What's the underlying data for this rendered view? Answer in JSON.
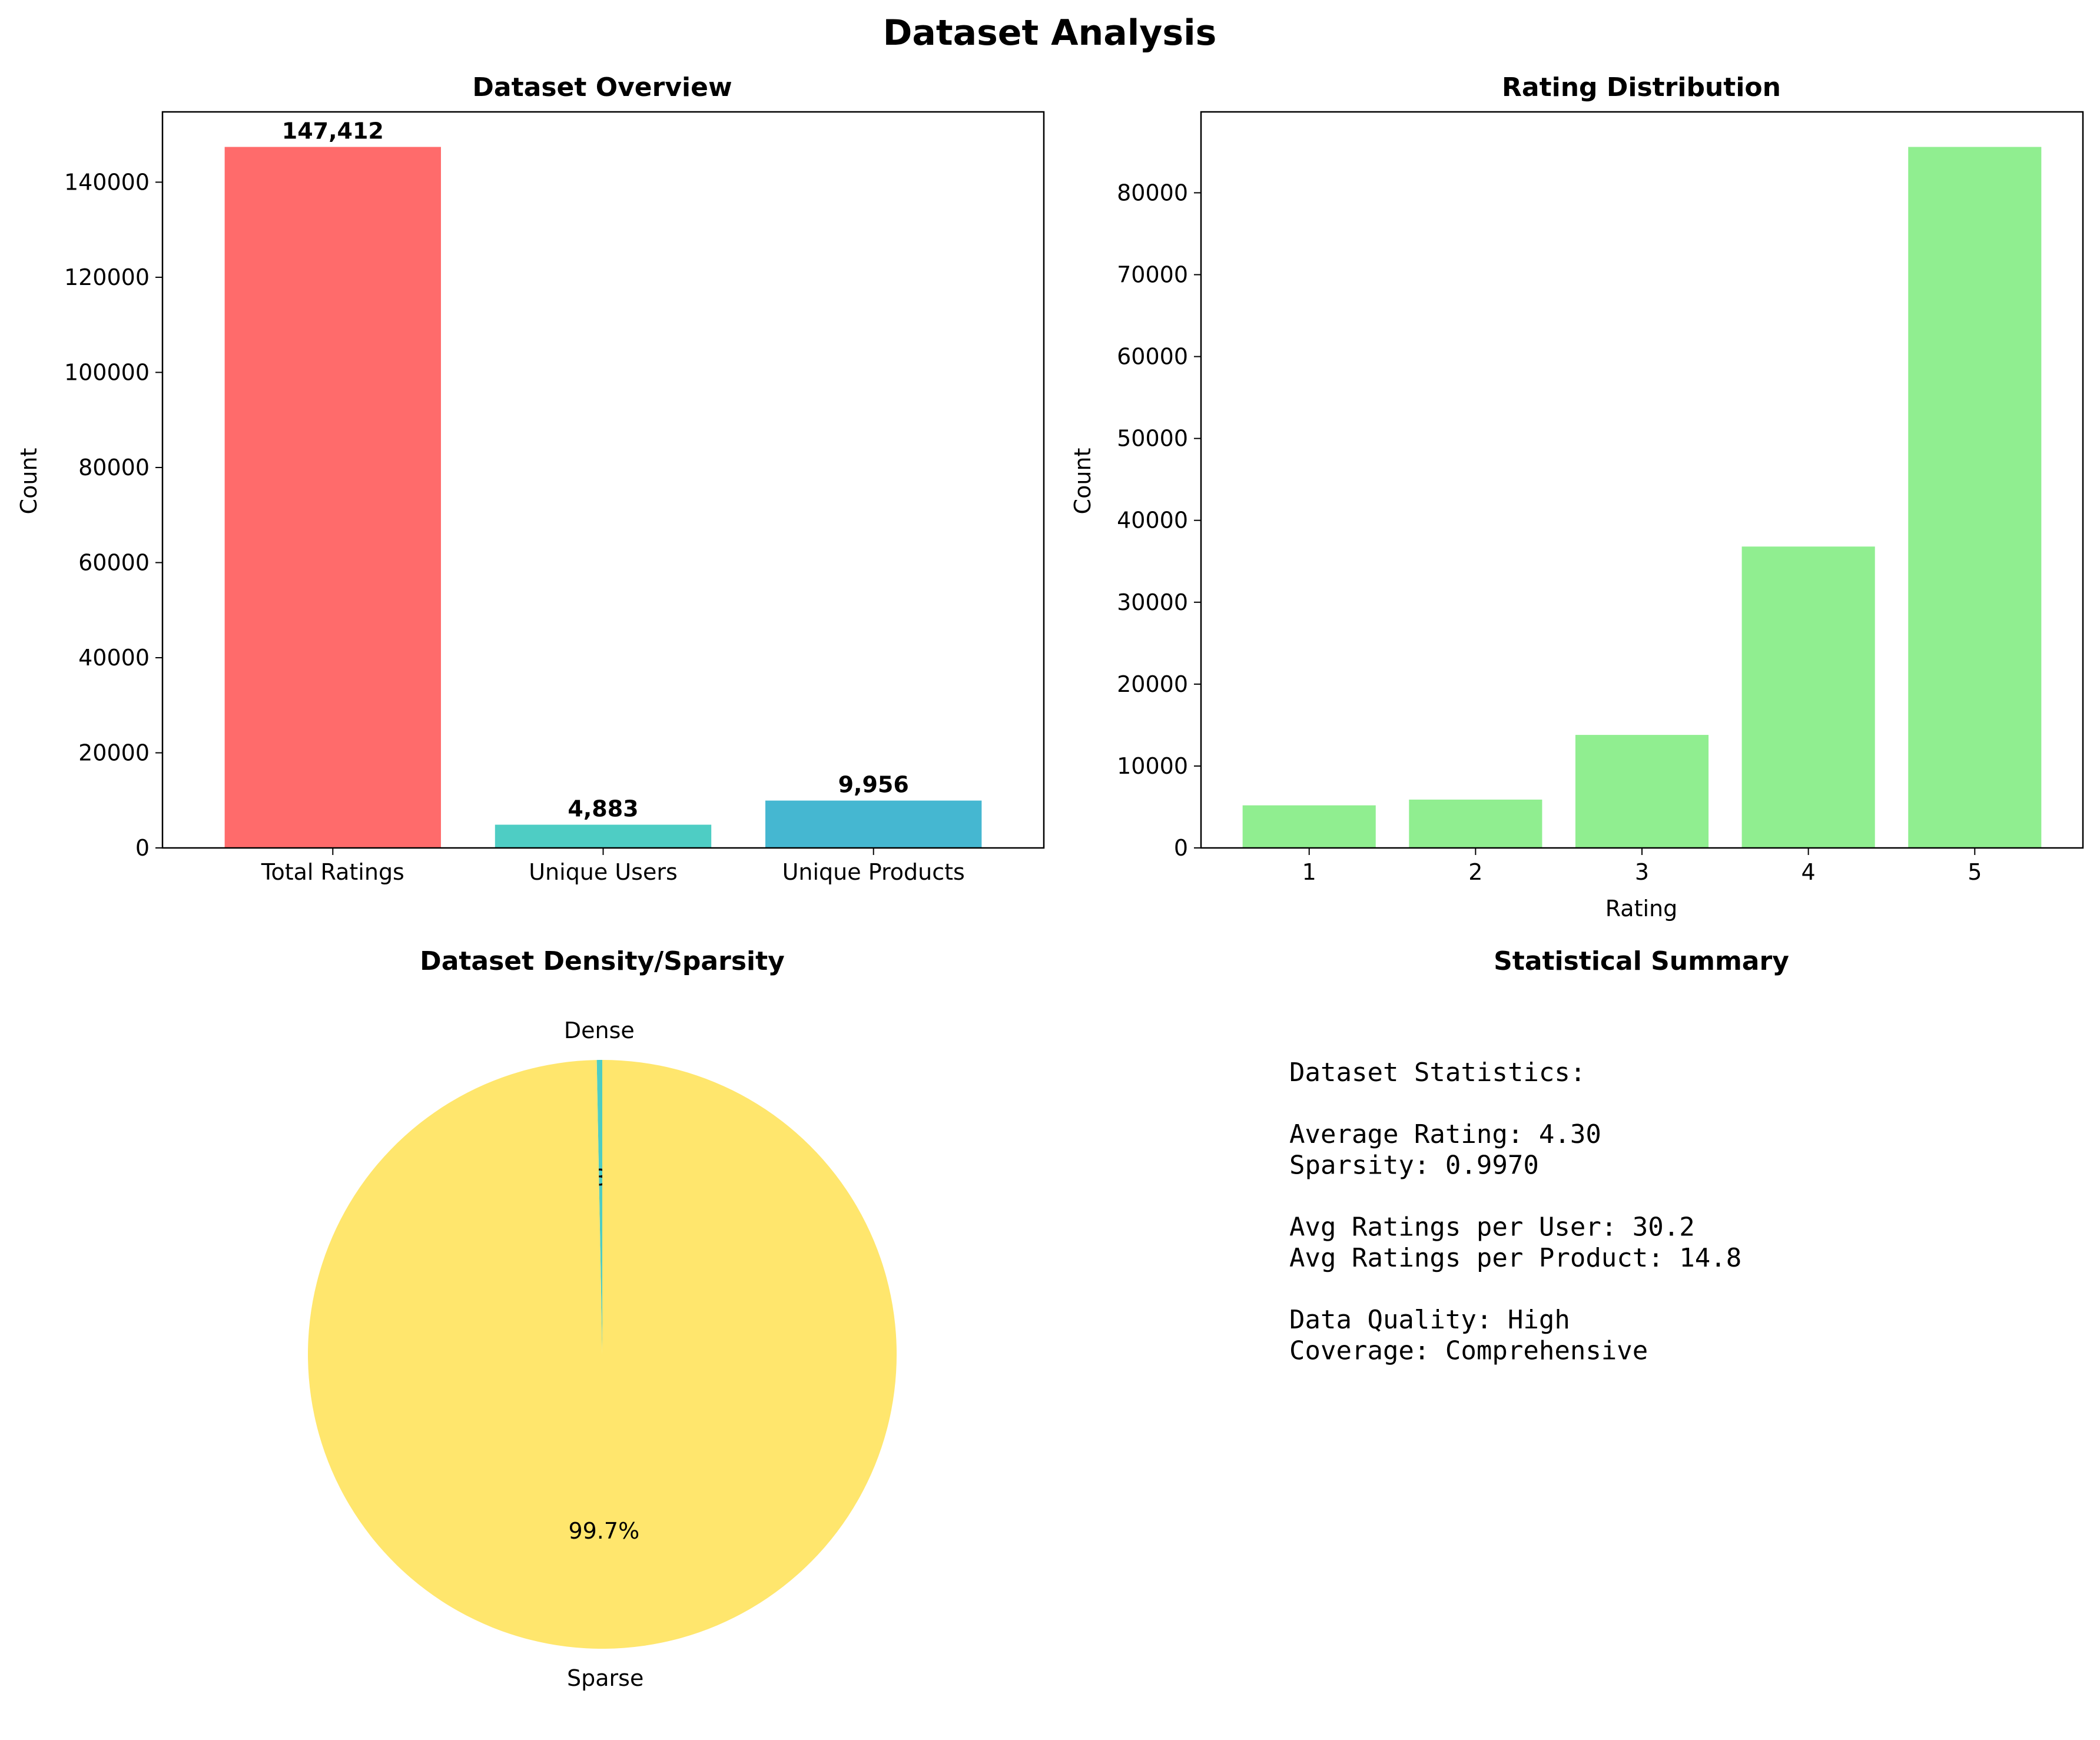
{
  "figure": {
    "title": "Dataset Analysis"
  },
  "chart_data": [
    {
      "type": "bar",
      "title": "Dataset Overview",
      "xlabel": "",
      "ylabel": "Count",
      "categories": [
        "Total Ratings",
        "Unique Users",
        "Unique Products"
      ],
      "values": [
        147412,
        4883,
        9956
      ],
      "value_labels": [
        "147,412",
        "4,883",
        "9,956"
      ],
      "colors": [
        "#FF6B6B",
        "#4ECDC4",
        "#45B7D1"
      ],
      "ylim": [
        0,
        154783
      ],
      "yticks": [
        0,
        20000,
        40000,
        60000,
        80000,
        100000,
        120000,
        140000
      ],
      "grid": false
    },
    {
      "type": "bar",
      "title": "Rating Distribution",
      "xlabel": "Rating",
      "ylabel": "Count",
      "categories": [
        "1",
        "2",
        "3",
        "4",
        "5"
      ],
      "values": [
        5200,
        5900,
        13800,
        36800,
        85600
      ],
      "color": "#90EE90",
      "ylim": [
        0,
        89880
      ],
      "yticks": [
        0,
        10000,
        20000,
        30000,
        40000,
        50000,
        60000,
        70000,
        80000
      ],
      "grid": false
    },
    {
      "type": "pie",
      "title": "Dataset Density/Sparsity",
      "labels": [
        "Dense",
        "Sparse"
      ],
      "values": [
        0.3,
        99.7
      ],
      "pct_labels": [
        "0.3%",
        "99.7%"
      ],
      "colors": [
        "#4ECDC4",
        "#FFE66D"
      ],
      "startangle": 90
    }
  ],
  "summary": {
    "title": "Statistical Summary",
    "lines": [
      "Dataset Statistics:",
      "",
      "Average Rating: 4.30",
      "Sparsity: 0.9970",
      "",
      "Avg Ratings per User: 30.2",
      "Avg Ratings per Product: 14.8",
      "",
      "Data Quality: High",
      "Coverage: Comprehensive"
    ]
  }
}
